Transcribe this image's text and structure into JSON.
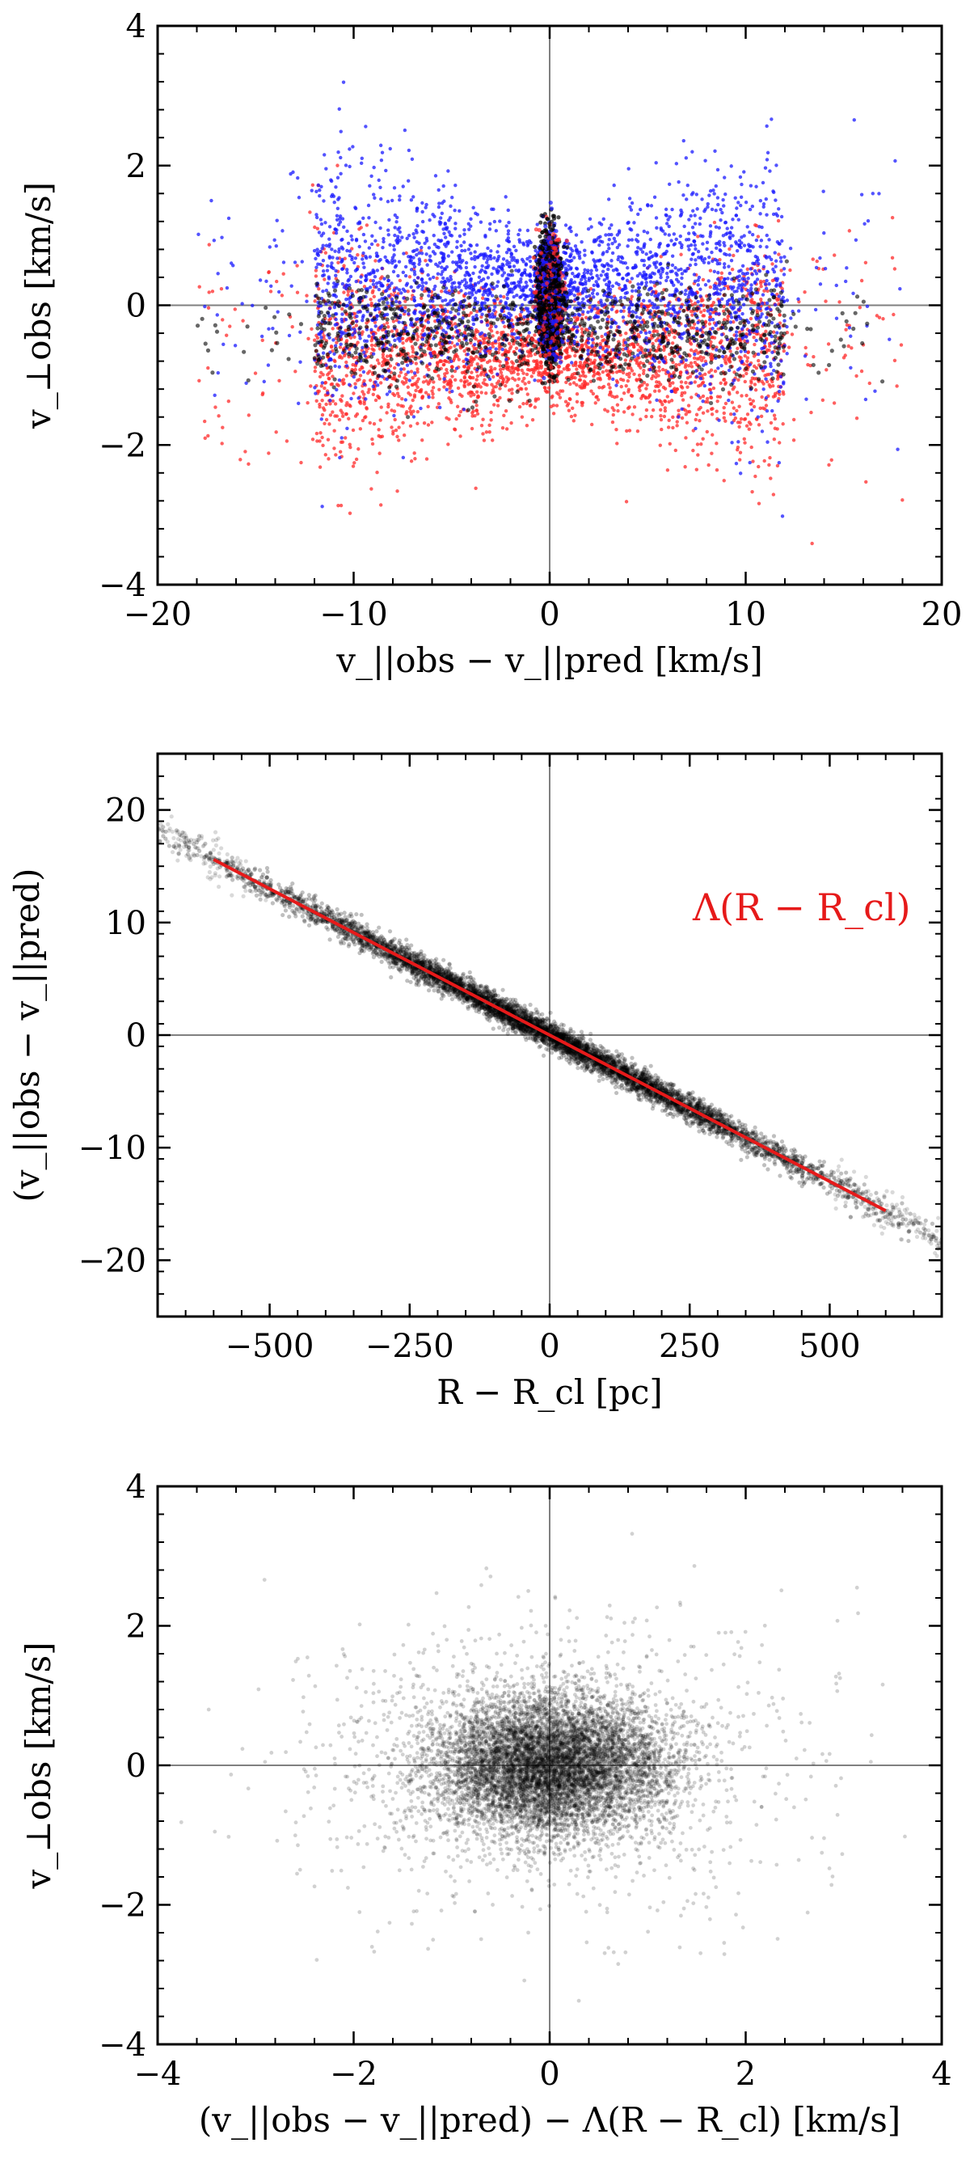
{
  "chart_data": [
    {
      "id": "top",
      "type": "scatter",
      "xlabel": "v_||obs − v_||pred [km/s]",
      "ylabel": "v_⊥obs [km/s]",
      "xlim": [
        -20,
        20
      ],
      "ylim": [
        -4,
        4
      ],
      "xticks": [
        -20,
        -10,
        0,
        10,
        20
      ],
      "yticks": [
        -4,
        -2,
        0,
        2,
        4
      ],
      "xtick_labels": [
        "−20",
        "−10",
        "0",
        "10",
        "20"
      ],
      "ytick_labels": [
        "−4",
        "−2",
        "0",
        "2",
        "4"
      ],
      "reference_lines": {
        "x": 0,
        "y": 0
      },
      "series": [
        {
          "name": "blue stars",
          "color": "#1a1aff",
          "description_values": {
            "x_range": [
              -18,
              18
            ],
            "y_mean": 0.3,
            "y_spread": 0.7
          }
        },
        {
          "name": "red stars",
          "color": "#ff2a2a",
          "description_values": {
            "x_range": [
              -18,
              18
            ],
            "y_mean": -0.7,
            "y_spread": 0.6
          }
        },
        {
          "name": "black stars",
          "color": "#000000",
          "description_values": {
            "x_range": [
              -18,
              18
            ],
            "y_mean": -0.3,
            "y_spread": 0.4
          }
        }
      ],
      "central_clump": {
        "x": 0,
        "y_range": [
          -0.8,
          1.0
        ]
      }
    },
    {
      "id": "middle",
      "type": "scatter",
      "xlabel": "R − R_cl [pc]",
      "ylabel": "(v_||obs − v_||pred)",
      "xlim": [
        -700,
        700
      ],
      "ylim": [
        -25,
        25
      ],
      "xticks": [
        -500,
        -250,
        0,
        250,
        500
      ],
      "yticks": [
        -20,
        -10,
        0,
        10,
        20
      ],
      "xtick_labels": [
        "−500",
        "−250",
        "0",
        "250",
        "500"
      ],
      "ytick_labels": [
        "−20",
        "−10",
        "0",
        "10",
        "20"
      ],
      "reference_lines": {
        "x": 0,
        "y": 0
      },
      "fit_line": {
        "label": "Λ(R − R_cl)",
        "slope": -0.026,
        "x_range": [
          -600,
          600
        ],
        "color": "#e61a1a"
      },
      "annotation": "Λ(R − R_cl)",
      "points": {
        "color": "#000000",
        "x_range": [
          -700,
          700
        ],
        "relation": "y ≈ −0.026·x"
      }
    },
    {
      "id": "bottom",
      "type": "scatter",
      "xlabel": "(v_||obs − v_||pred) − Λ(R − R_cl) [km/s]",
      "ylabel": "v_⊥obs [km/s]",
      "xlim": [
        -4,
        4
      ],
      "ylim": [
        -4,
        4
      ],
      "xticks": [
        -4,
        -2,
        0,
        2,
        4
      ],
      "yticks": [
        -4,
        -2,
        0,
        2,
        4
      ],
      "xtick_labels": [
        "−4",
        "−2",
        "0",
        "2",
        "4"
      ],
      "ytick_labels": [
        "−4",
        "−2",
        "0",
        "2",
        "4"
      ],
      "reference_lines": {
        "x": 0,
        "y": 0
      },
      "points": {
        "color": "#000000",
        "center": [
          0,
          0
        ],
        "x_spread": 0.6,
        "y_spread": 0.5
      }
    }
  ]
}
